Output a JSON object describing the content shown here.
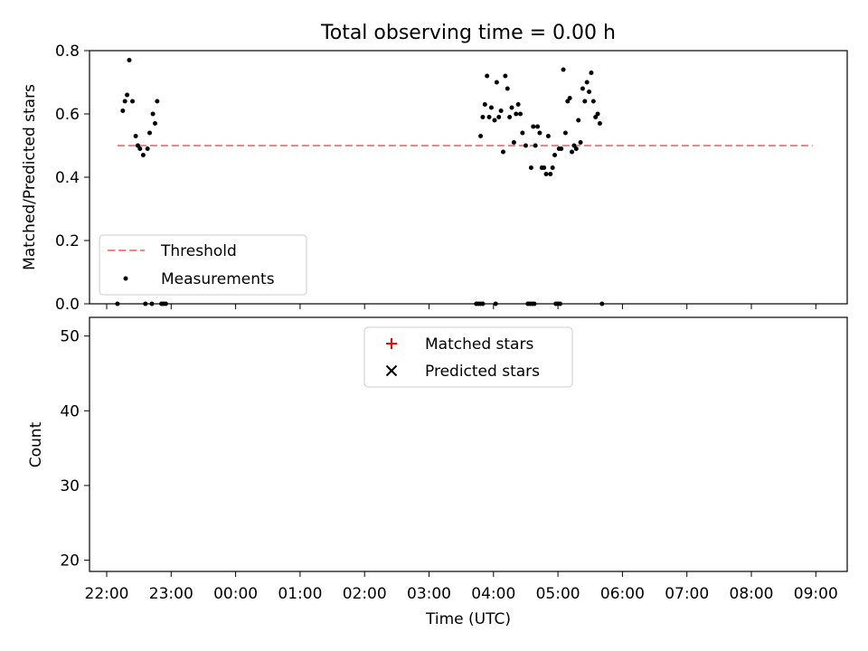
{
  "figure": {
    "title": "Total observing time = 0.00 h"
  },
  "chart_data": [
    {
      "type": "scatter",
      "title": "Total observing time = 0.00 h",
      "xlabel": "",
      "ylabel": "Matched/Predicted stars",
      "xlim": [
        "21:48",
        "09:30"
      ],
      "ylim": [
        0,
        0.8
      ],
      "yticks": [
        0.0,
        0.2,
        0.4,
        0.6,
        0.8
      ],
      "ytick_labels": [
        "0.0",
        "0.2",
        "0.4",
        "0.6",
        "0.8"
      ],
      "grid": false,
      "legend": {
        "placement": "lower-left",
        "entries": [
          "Threshold",
          "Measurements"
        ]
      },
      "threshold": {
        "name": "Threshold",
        "value": 0.5,
        "x_start": "22:10",
        "x_end": "08:57",
        "color": "#ff7f7f",
        "style": "dashed"
      },
      "series": [
        {
          "name": "Measurements",
          "marker": "dot",
          "color": "#000000",
          "points": [
            [
              "22:10",
              0.0
            ],
            [
              "22:15",
              0.61
            ],
            [
              "22:17",
              0.64
            ],
            [
              "22:19",
              0.66
            ],
            [
              "22:21",
              0.77
            ],
            [
              "22:24",
              0.64
            ],
            [
              "22:27",
              0.53
            ],
            [
              "22:29",
              0.5
            ],
            [
              "22:31",
              0.49
            ],
            [
              "22:34",
              0.47
            ],
            [
              "22:38",
              0.49
            ],
            [
              "22:40",
              0.54
            ],
            [
              "22:43",
              0.6
            ],
            [
              "22:45",
              0.57
            ],
            [
              "22:47",
              0.64
            ],
            [
              "22:36",
              0.0
            ],
            [
              "22:42",
              0.0
            ],
            [
              "22:51",
              0.0
            ],
            [
              "22:53",
              0.0
            ],
            [
              "22:55",
              0.0
            ],
            [
              "03:44",
              0.0
            ],
            [
              "03:46",
              0.0
            ],
            [
              "03:48",
              0.0
            ],
            [
              "03:50",
              0.0
            ],
            [
              "04:02",
              0.0
            ],
            [
              "03:48",
              0.53
            ],
            [
              "03:50",
              0.59
            ],
            [
              "03:52",
              0.63
            ],
            [
              "03:54",
              0.72
            ],
            [
              "03:56",
              0.59
            ],
            [
              "03:58",
              0.62
            ],
            [
              "04:01",
              0.58
            ],
            [
              "04:03",
              0.7
            ],
            [
              "04:05",
              0.59
            ],
            [
              "04:07",
              0.61
            ],
            [
              "04:09",
              0.48
            ],
            [
              "04:11",
              0.72
            ],
            [
              "04:13",
              0.68
            ],
            [
              "04:15",
              0.59
            ],
            [
              "04:17",
              0.62
            ],
            [
              "04:19",
              0.51
            ],
            [
              "04:21",
              0.6
            ],
            [
              "04:23",
              0.63
            ],
            [
              "04:25",
              0.6
            ],
            [
              "04:27",
              0.54
            ],
            [
              "04:30",
              0.5
            ],
            [
              "04:35",
              0.43
            ],
            [
              "04:37",
              0.56
            ],
            [
              "04:39",
              0.5
            ],
            [
              "04:41",
              0.56
            ],
            [
              "04:43",
              0.54
            ],
            [
              "04:45",
              0.43
            ],
            [
              "04:47",
              0.43
            ],
            [
              "04:49",
              0.41
            ],
            [
              "04:51",
              0.53
            ],
            [
              "04:53",
              0.41
            ],
            [
              "04:55",
              0.43
            ],
            [
              "04:57",
              0.47
            ],
            [
              "05:01",
              0.49
            ],
            [
              "05:03",
              0.49
            ],
            [
              "05:05",
              0.74
            ],
            [
              "05:07",
              0.54
            ],
            [
              "05:09",
              0.64
            ],
            [
              "05:11",
              0.65
            ],
            [
              "05:13",
              0.48
            ],
            [
              "05:15",
              0.5
            ],
            [
              "05:17",
              0.49
            ],
            [
              "05:19",
              0.58
            ],
            [
              "05:21",
              0.51
            ],
            [
              "05:23",
              0.68
            ],
            [
              "05:25",
              0.64
            ],
            [
              "05:27",
              0.7
            ],
            [
              "05:29",
              0.67
            ],
            [
              "05:31",
              0.73
            ],
            [
              "05:33",
              0.64
            ],
            [
              "05:35",
              0.59
            ],
            [
              "05:37",
              0.6
            ],
            [
              "05:39",
              0.57
            ],
            [
              "04:32",
              0.0
            ],
            [
              "04:34",
              0.0
            ],
            [
              "04:36",
              0.0
            ],
            [
              "04:38",
              0.0
            ],
            [
              "04:58",
              0.0
            ],
            [
              "05:00",
              0.0
            ],
            [
              "05:02",
              0.0
            ],
            [
              "05:41",
              0.0
            ]
          ]
        }
      ]
    },
    {
      "type": "scatter",
      "title": "",
      "xlabel": "Time (UTC)",
      "ylabel": "Count",
      "xlim": [
        "21:48",
        "09:30"
      ],
      "ylim": [
        18.5,
        52.5
      ],
      "xticks": [
        "22:00",
        "23:00",
        "00:00",
        "01:00",
        "02:00",
        "03:00",
        "04:00",
        "05:00",
        "06:00",
        "07:00",
        "08:00",
        "09:00"
      ],
      "yticks": [
        20,
        30,
        40,
        50
      ],
      "ytick_labels": [
        "20",
        "30",
        "40",
        "50"
      ],
      "grid": false,
      "legend": {
        "placement": "top-center",
        "entries": [
          "Matched stars",
          "Predicted stars"
        ]
      },
      "series": [
        {
          "name": "Matched stars",
          "marker": "plus",
          "color": "#ff0000",
          "points": []
        },
        {
          "name": "Predicted stars",
          "marker": "x",
          "color": "#000000",
          "points": []
        }
      ]
    }
  ]
}
